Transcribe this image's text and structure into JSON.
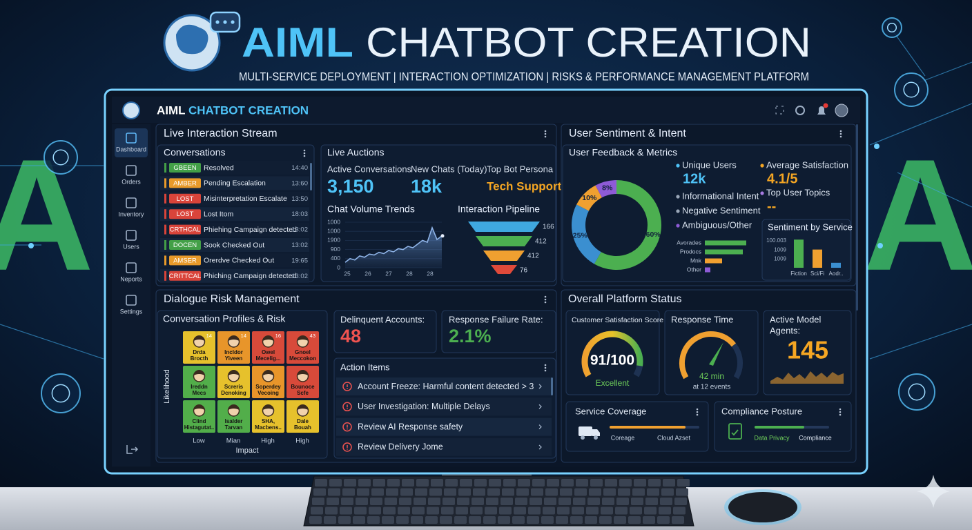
{
  "header": {
    "title_accent": "AIML",
    "title_rest": "CHATBOT CREATION",
    "subtitle": "MULTI-SERVICE DEPLOYMENT | INTERACTION OPTIMIZATION | RISKS & PERFORMANCE MANAGEMENT PLATFORM"
  },
  "backdrop_text": "AI",
  "app_bar": {
    "brand_accent": "AIML",
    "brand_rest": "CHATBOT CREATION"
  },
  "sidebar": {
    "items": [
      "Dashboard",
      "Orders",
      "Inventory",
      "Users",
      "Neports",
      "Settings"
    ]
  },
  "live_stream": {
    "title": "Live Interaction Stream",
    "conversations": {
      "title": "Conversations",
      "rows": [
        {
          "tag": "GBEEN",
          "color": "#43a047",
          "text": "Resolved",
          "time": "14:40"
        },
        {
          "tag": "AMBER",
          "color": "#e89a2a",
          "text": "Pending Escalation",
          "time": "13:60"
        },
        {
          "tag": "LOST",
          "color": "#d9443a",
          "text": "Misinterpretation Escalate",
          "time": "13:50"
        },
        {
          "tag": "LOST",
          "color": "#d9443a",
          "text": "Lost Itom",
          "time": "18:03"
        },
        {
          "tag": "CRTHCAL",
          "color": "#d9443a",
          "text": "Phiehing Campaign detected",
          "time": "13:02"
        },
        {
          "tag": "DOCEN",
          "color": "#43a047",
          "text": "Sook Checked Out",
          "time": "13:02"
        },
        {
          "tag": "AMSER",
          "color": "#e89a2a",
          "text": "Orerdve Checked Out",
          "time": "19:65"
        },
        {
          "tag": "CRITTCAL",
          "color": "#d9443a",
          "text": "Phiching Campaign detected",
          "time": "13:02"
        }
      ]
    },
    "auctions": {
      "title": "Live Auctions",
      "kpis": [
        {
          "label": "Active Conversations",
          "value": "3,150",
          "color": "#4fc3f7"
        },
        {
          "label": "New Chats (Today)",
          "value": "18k",
          "color": "#4fc3f7"
        },
        {
          "label": "Top Bot Persona",
          "value": "Tech Support",
          "color": "#f5a623"
        }
      ]
    },
    "trend": {
      "type": "line",
      "title": "Chat Volume Trends",
      "y_labels": [
        "1000",
        "1000",
        "1900",
        "900",
        "400",
        "0"
      ],
      "x_labels": [
        "25",
        "26",
        "27",
        "28",
        "28"
      ],
      "ylim": [
        0,
        1000
      ],
      "values": [
        120,
        200,
        170,
        260,
        230,
        300,
        280,
        340,
        310,
        380,
        350,
        420,
        400,
        470,
        440,
        520,
        600,
        560,
        880,
        620,
        700
      ],
      "color": "#8fb4e8"
    },
    "pipeline": {
      "title": "Interaction Pipeline",
      "labels": [
        "166",
        "412",
        "412",
        "76"
      ],
      "colors": [
        "#3fa8e0",
        "#4caf50",
        "#f0a030",
        "#e04a3a"
      ]
    }
  },
  "sentiment": {
    "title": "User Sentiment & Intent",
    "feedback": {
      "title": "User Feedback & Metrics",
      "donut": {
        "type": "pie",
        "values": [
          60,
          25,
          10,
          8
        ],
        "value_labels": [
          "60%",
          "25%",
          "10%",
          "8%"
        ],
        "colors": [
          "#4caf50",
          "#3b8fd0",
          "#f0a030",
          "#8e5bd6"
        ]
      },
      "metrics": [
        {
          "label": "Unique Users",
          "value": "12k",
          "color": "#4fc3f7"
        },
        {
          "label": "Average Satisfaction",
          "value": "4.1/5",
          "color": "#f5a623"
        },
        {
          "label": "Informational Intent",
          "color": "#9aa7b8"
        },
        {
          "label": "Top User Topics",
          "value": "--",
          "color": "#a77be0"
        },
        {
          "label": "Negative Sentiment",
          "color": "#9aa7b8"
        },
        {
          "label": "Ambiguous/Other",
          "color": "#8e5bd6"
        }
      ],
      "topic_bars": {
        "type": "bar",
        "categories": [
          "Avorades",
          "Prodocs",
          "Mnk",
          "Other"
        ],
        "values": [
          60,
          55,
          25,
          8
        ],
        "xlim": [
          0,
          60
        ],
        "colors": [
          "#4caf50",
          "#4caf50",
          "#f0a030",
          "#8e5bd6"
        ]
      }
    },
    "by_service": {
      "type": "bar",
      "title": "Sentiment by Service",
      "y_labels": [
        "100.003",
        "1009",
        "1009"
      ],
      "categories": [
        "Fiction",
        "Sci/Fi",
        "Aodr.."
      ],
      "values": [
        85,
        55,
        15
      ],
      "ylim": [
        0,
        100
      ],
      "colors": [
        "#4caf50",
        "#f0a030",
        "#3b8fd0"
      ]
    }
  },
  "risk": {
    "title": "Dialogue Risk Management",
    "profiles": {
      "title": "Conversation Profiles & Risk",
      "y_axis": "Likelihood",
      "x_labels": [
        "Low",
        "Mian",
        "High",
        "High"
      ],
      "x_axis": "Impact",
      "cells": [
        [
          {
            "lines": [
              "Drda",
              "Brocth"
            ],
            "color": "#e6c12c",
            "badge": "14"
          },
          {
            "lines": [
              "Incldor",
              "Yiveen"
            ],
            "color": "#e8952a",
            "badge": "14"
          },
          {
            "lines": [
              "Owel",
              "Mecelig..."
            ],
            "color": "#d84a3a",
            "badge": "16"
          },
          {
            "lines": [
              "Gnoel",
              "Meccokon"
            ],
            "color": "#d84a3a",
            "badge": "43"
          }
        ],
        [
          {
            "lines": [
              "Ireddn",
              "Mecs"
            ],
            "color": "#52ae4a"
          },
          {
            "lines": [
              "Screris",
              "Dcnoking"
            ],
            "color": "#e6c12c"
          },
          {
            "lines": [
              "Soperdey",
              "Vecoing"
            ],
            "color": "#e8952a"
          },
          {
            "lines": [
              "Bounoce",
              "Scfe"
            ],
            "color": "#d84a3a"
          }
        ],
        [
          {
            "lines": [
              "Clind",
              "Histagutat.."
            ],
            "color": "#52ae4a"
          },
          {
            "lines": [
              "Isalder",
              "Tarvan"
            ],
            "color": "#52ae4a"
          },
          {
            "lines": [
              "SHA,",
              "Macbens.."
            ],
            "color": "#e6c12c"
          },
          {
            "lines": [
              "Dale",
              "Bouah"
            ],
            "color": "#e6c12c"
          }
        ]
      ]
    },
    "delinquent": {
      "label": "Delinquent Accounts:",
      "value": "48",
      "color": "#ef5350"
    },
    "failure": {
      "label": "Response Failure Rate:",
      "value": "2.1%",
      "color": "#4caf50"
    },
    "actions": {
      "title": "Action Items",
      "items": [
        "Account Freeze: Harmful content detected > 3",
        "User Investigation: Multiple Delays",
        "Review AI Response safety",
        "Review Delivery Jome"
      ]
    }
  },
  "status": {
    "title": "Overall Platform Status",
    "csat": {
      "title": "Customer Satisfaction Score",
      "score": 91,
      "max": 100,
      "label": "91/100",
      "rating": "Excellent"
    },
    "response": {
      "title": "Response Time",
      "value": "42 min",
      "note": "at 12 events"
    },
    "agents": {
      "title_lines": [
        "Active Model",
        "Agents:"
      ],
      "value": "145"
    },
    "coverage": {
      "title": "Service Coverage",
      "labels": [
        "Coreage",
        "Cloud Azset"
      ]
    },
    "compliance": {
      "title": "Compliance Posture",
      "labels": [
        "Data Privacy",
        "Compliance"
      ]
    }
  }
}
